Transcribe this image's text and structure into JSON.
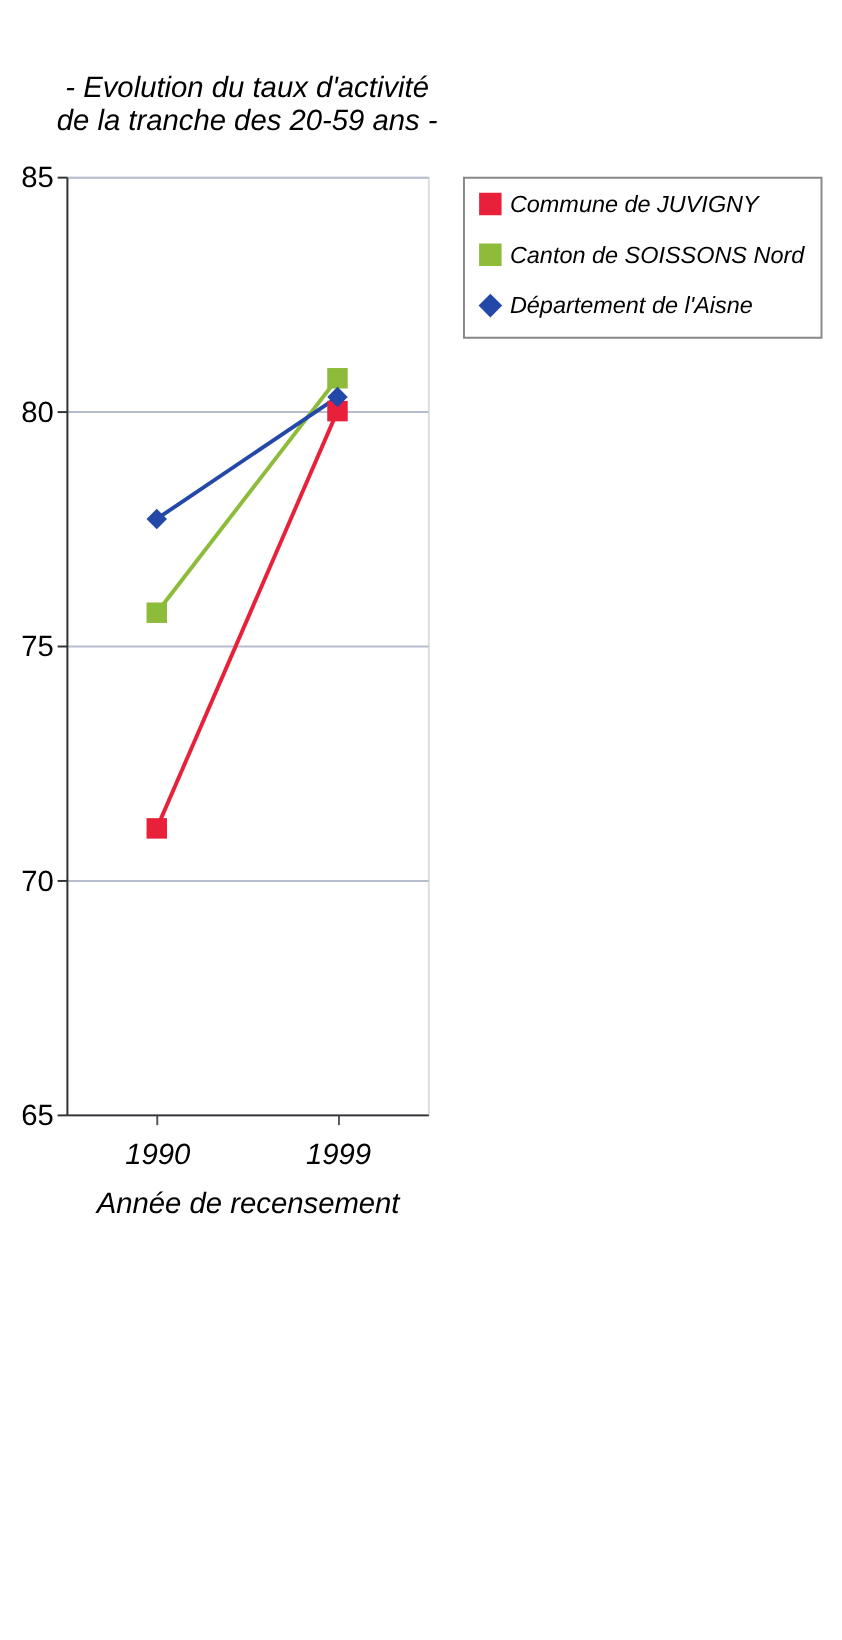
{
  "chart_data": {
    "type": "line",
    "title": [
      "- Evolution du taux d'activité",
      "de la tranche des 20-59 ans -"
    ],
    "xlabel": "Année de recensement",
    "categories": [
      "1990",
      "1999"
    ],
    "series": [
      {
        "name": "Commune de JUVIGNY",
        "color": "#e8203a",
        "marker": "square",
        "values": [
          71.1,
          80.0
        ]
      },
      {
        "name": "Canton de SOISSONS Nord",
        "color": "#8dbb3a",
        "marker": "square",
        "values": [
          75.7,
          80.7
        ]
      },
      {
        "name": "Département de l'Aisne",
        "color": "#2348a8",
        "marker": "diamond",
        "values": [
          77.7,
          80.3
        ]
      }
    ],
    "ylim": [
      65,
      85
    ],
    "yticks": [
      65,
      70,
      75,
      80,
      85
    ],
    "grid": "y",
    "legend": "right",
    "line_style": "solid"
  }
}
